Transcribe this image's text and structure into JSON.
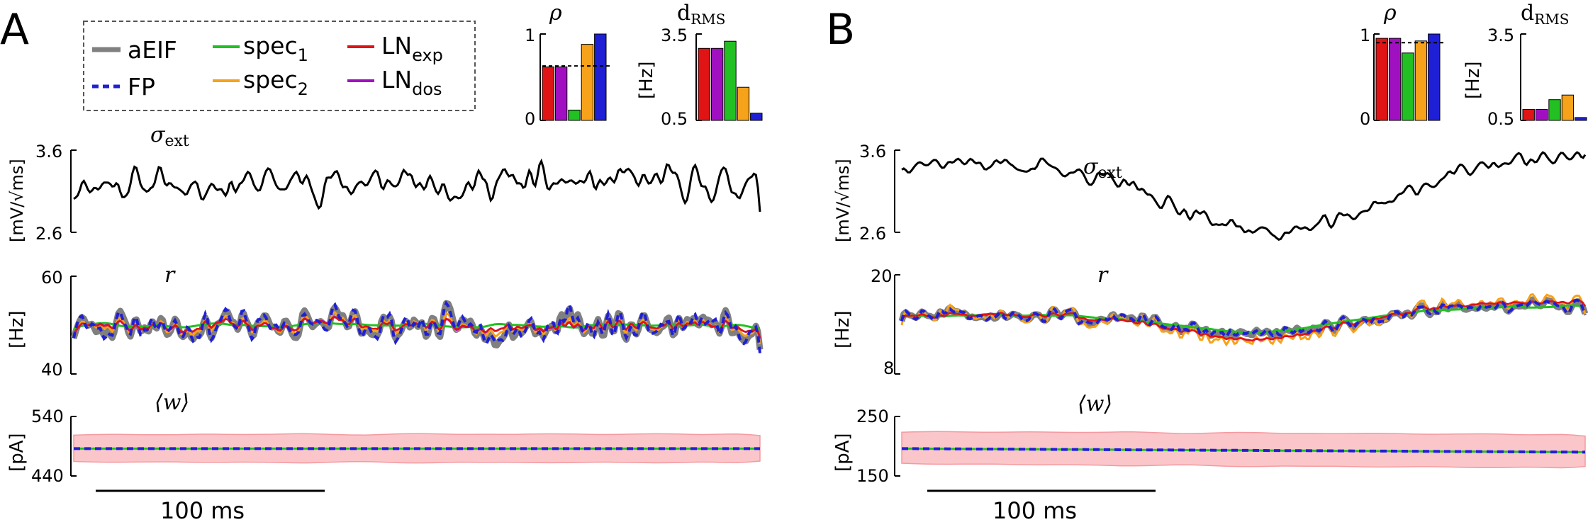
{
  "colors": {
    "aEIF": "#808080",
    "FP": "#1f1fd6",
    "spec1": "#22c022",
    "spec2": "#f7a21b",
    "LNexp": "#e01414",
    "LNdos": "#a010c0",
    "band": "#fbc6c9",
    "bandEdge": "#f49aa0",
    "sigma": "#000000"
  },
  "legend": {
    "items": [
      {
        "key": "aEIF",
        "label": "aEIF",
        "sub": "",
        "style": "solid"
      },
      {
        "key": "FP",
        "label": "FP",
        "sub": "",
        "style": "dashed"
      },
      {
        "key": "spec1",
        "label": "spec",
        "sub": "1",
        "style": "solid"
      },
      {
        "key": "spec2",
        "label": "spec",
        "sub": "2",
        "style": "solid"
      },
      {
        "key": "LNexp",
        "label": "LN",
        "sub": "exp",
        "style": "solid"
      },
      {
        "key": "LNdos",
        "label": "LN",
        "sub": "dos",
        "style": "solid"
      }
    ]
  },
  "panels": [
    {
      "letter": "A",
      "scalebar_label": "100 ms",
      "sigma_label": "σ",
      "sigma_sub": "ext",
      "r_label": "r",
      "w_label": "⟨w⟩",
      "rho_title": "ρ",
      "drms_title": "d",
      "drms_sub": "RMS",
      "drms_unit": "[Hz]",
      "sigma_unit": "[mV/√ms]",
      "r_unit": "[Hz]",
      "w_unit": "[pA]"
    },
    {
      "letter": "B",
      "scalebar_label": "100 ms",
      "sigma_label": "σ",
      "sigma_sub": "ext",
      "r_label": "r",
      "w_label": "⟨w⟩",
      "rho_title": "ρ",
      "drms_title": "d",
      "drms_sub": "RMS",
      "drms_unit": "[Hz]",
      "sigma_unit": "[mV/√ms]",
      "r_unit": "[Hz]",
      "w_unit": "[pA]"
    }
  ],
  "chart_data": [
    {
      "type": "bar",
      "panel": "A",
      "title": "ρ",
      "categories": [
        "LN_exp",
        "LN_dos",
        "spec_1",
        "spec_2",
        "FP"
      ],
      "values": [
        0.62,
        0.62,
        0.12,
        0.88,
        1.0
      ],
      "reference_line": 0.63,
      "ylim": [
        0,
        1
      ],
      "yticks": [
        "0",
        "1"
      ]
    },
    {
      "type": "bar",
      "panel": "A",
      "title": "d_RMS",
      "ylabel": "[Hz]",
      "categories": [
        "LN_exp",
        "LN_dos",
        "spec_1",
        "spec_2",
        "FP"
      ],
      "values": [
        3.0,
        3.0,
        3.25,
        1.65,
        0.75
      ],
      "ylim": [
        0.5,
        3.5
      ],
      "yticks": [
        "0.5",
        "3.5"
      ]
    },
    {
      "type": "bar",
      "panel": "B",
      "title": "ρ",
      "categories": [
        "LN_exp",
        "LN_dos",
        "spec_1",
        "spec_2",
        "FP"
      ],
      "values": [
        0.95,
        0.95,
        0.78,
        0.92,
        1.0
      ],
      "reference_line": 0.9,
      "ylim": [
        0,
        1
      ],
      "yticks": [
        "0",
        "1"
      ]
    },
    {
      "type": "bar",
      "panel": "B",
      "title": "d_RMS",
      "ylabel": "[Hz]",
      "categories": [
        "LN_exp",
        "LN_dos",
        "spec_1",
        "spec_2",
        "FP"
      ],
      "values": [
        0.88,
        0.88,
        1.22,
        1.38,
        0.6
      ],
      "ylim": [
        0.5,
        3.5
      ],
      "yticks": [
        "0.5",
        "3.5"
      ]
    },
    {
      "type": "line",
      "panel": "A",
      "title": "σ_ext",
      "ylabel": "[mV/√ms]",
      "ylim": [
        2.6,
        3.6
      ],
      "yticks": [
        "2.6",
        "3.6"
      ],
      "seed": 11,
      "base": 3.2,
      "amp": 0.35,
      "n": 340
    },
    {
      "type": "line",
      "panel": "A",
      "title": "r",
      "ylabel": "[Hz]",
      "ylim": [
        40,
        60
      ],
      "yticks": [
        "40",
        "60"
      ],
      "seed": 23,
      "base": 50,
      "amp": 5,
      "n": 340
    },
    {
      "type": "area",
      "panel": "A",
      "title": "⟨w⟩",
      "ylabel": "[pA]",
      "ylim": [
        440,
        540
      ],
      "yticks": [
        "440",
        "540"
      ],
      "mean": 486,
      "band": [
        463,
        510
      ]
    },
    {
      "type": "line",
      "panel": "B",
      "title": "σ_ext",
      "ylabel": "[mV/√ms]",
      "ylim": [
        2.6,
        3.6
      ],
      "yticks": [
        "2.6",
        "3.6"
      ],
      "seed": 37,
      "base": 3.1,
      "amp": 0.12,
      "n": 340
    },
    {
      "type": "line",
      "panel": "B",
      "title": "r",
      "ylabel": "[Hz]",
      "ylim": [
        8,
        20
      ],
      "yticks": [
        "8",
        "20"
      ],
      "seed": 51,
      "base": 15,
      "amp": 1.2,
      "n": 340
    },
    {
      "type": "area",
      "panel": "B",
      "title": "⟨w⟩",
      "ylabel": "[pA]",
      "ylim": [
        150,
        250
      ],
      "yticks": [
        "150",
        "250"
      ],
      "mean": 196,
      "band": [
        170,
        225
      ]
    }
  ]
}
